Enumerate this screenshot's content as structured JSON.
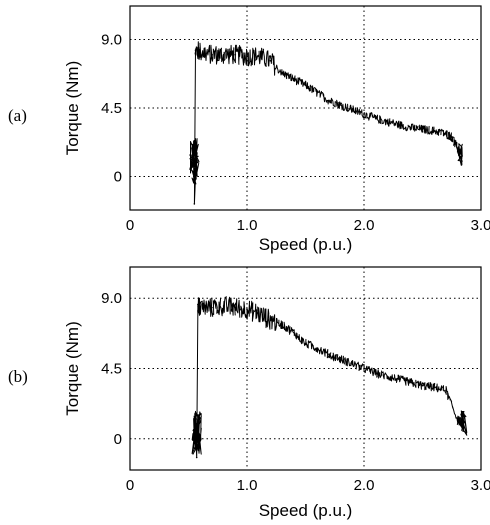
{
  "chart_data": [
    {
      "type": "line",
      "panel_label": "(a)",
      "title": "",
      "xlabel": "Speed (p.u.)",
      "ylabel": "Torque (Nm)",
      "xlim": [
        0,
        3.0
      ],
      "ylim": [
        -2.2,
        11.2
      ],
      "xticks": [
        "0",
        "1.0",
        "2.0",
        "3.0"
      ],
      "yticks": [
        "0",
        "4.5",
        "9.0"
      ],
      "xtick_values": [
        0,
        1.0,
        2.0,
        3.0
      ],
      "ytick_values": [
        0,
        4.5,
        9.0
      ],
      "grid": true,
      "series": [
        {
          "color": "#000000",
          "x": [
            0.55,
            0.55,
            0.56,
            0.6,
            0.7,
            0.8,
            0.9,
            1.0,
            1.1,
            1.2,
            1.3,
            1.4,
            1.5,
            1.6,
            1.7,
            1.8,
            1.9,
            2.0,
            2.1,
            2.2,
            2.3,
            2.4,
            2.5,
            2.6,
            2.7,
            2.75,
            2.8,
            2.82
          ],
          "y": [
            1.0,
            -1.8,
            8.3,
            8.2,
            8.0,
            8.0,
            8.0,
            7.9,
            7.9,
            7.6,
            6.8,
            6.4,
            6.0,
            5.5,
            5.0,
            4.7,
            4.4,
            4.1,
            3.8,
            3.6,
            3.4,
            3.2,
            3.1,
            3.0,
            2.8,
            2.6,
            1.8,
            1.5
          ]
        }
      ]
    },
    {
      "type": "line",
      "panel_label": "(b)",
      "title": "",
      "xlabel": "Speed (p.u.)",
      "ylabel": "Torque (Nm)",
      "xlim": [
        0,
        3.0
      ],
      "ylim": [
        -2.0,
        11.0
      ],
      "xticks": [
        "0",
        "1.0",
        "2.0",
        "3.0"
      ],
      "yticks": [
        "0",
        "4.5",
        "9.0"
      ],
      "xtick_values": [
        0,
        1.0,
        2.0,
        3.0
      ],
      "ytick_values": [
        0,
        4.5,
        9.0
      ],
      "grid": true,
      "series": [
        {
          "color": "#000000",
          "x": [
            0.57,
            0.57,
            0.58,
            0.6,
            0.7,
            0.8,
            0.9,
            1.0,
            1.1,
            1.2,
            1.3,
            1.4,
            1.5,
            1.6,
            1.7,
            1.8,
            1.9,
            2.0,
            2.1,
            2.2,
            2.3,
            2.4,
            2.5,
            2.6,
            2.7,
            2.8,
            2.85
          ],
          "y": [
            0.5,
            -1.2,
            8.6,
            8.4,
            8.4,
            8.5,
            8.4,
            8.3,
            8.0,
            7.6,
            7.3,
            6.8,
            6.1,
            5.8,
            5.4,
            5.1,
            4.8,
            4.5,
            4.2,
            4.0,
            3.8,
            3.6,
            3.4,
            3.3,
            3.1,
            1.2,
            1.0
          ]
        }
      ]
    }
  ]
}
